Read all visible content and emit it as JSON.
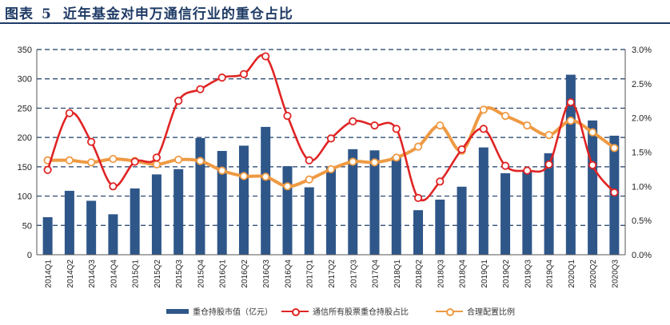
{
  "header": {
    "figure_label": "图表",
    "figure_number": "5",
    "title": "近年基金对申万通信行业的重仓占比"
  },
  "chart_data": {
    "type": "bar+line",
    "categories": [
      "2014Q1",
      "2014Q2",
      "2014Q3",
      "2014Q4",
      "2015Q1",
      "2015Q2",
      "2015Q3",
      "2015Q4",
      "2016Q1",
      "2016Q2",
      "2016Q3",
      "2016Q4",
      "2017Q1",
      "2017Q2",
      "2017Q3",
      "2017Q4",
      "2018Q1",
      "2018Q2",
      "2018Q3",
      "2018Q4",
      "2019Q1",
      "2019Q2",
      "2019Q3",
      "2019Q4",
      "2020Q1",
      "2020Q2",
      "2020Q3"
    ],
    "y_left": {
      "range": [
        0,
        350
      ],
      "ticks": [
        "0",
        "50",
        "100",
        "150",
        "200",
        "250",
        "300",
        "350"
      ]
    },
    "y_right": {
      "range": [
        0,
        3.0
      ],
      "ticks": [
        "0.0%",
        "0.5%",
        "1.0%",
        "1.5%",
        "2.0%",
        "2.5%",
        "3.0%"
      ]
    },
    "grid": "dashed-horizontal",
    "legend_position": "bottom",
    "series": [
      {
        "name": "重仓持股市值（亿元）",
        "kind": "bar",
        "axis": "left",
        "color": "#2e5689",
        "values": [
          64,
          109,
          92,
          69,
          113,
          137,
          146,
          199,
          177,
          186,
          218,
          151,
          115,
          150,
          180,
          178,
          167,
          76,
          94,
          116,
          183,
          139,
          143,
          173,
          307,
          229,
          203
        ]
      },
      {
        "name": "通信所有股票重仓持股占比",
        "kind": "line",
        "axis": "right",
        "color": "#e02424",
        "values": [
          1.24,
          2.07,
          1.65,
          1.0,
          1.36,
          1.42,
          2.25,
          2.42,
          2.59,
          2.64,
          2.9,
          2.03,
          1.38,
          1.7,
          1.95,
          1.89,
          1.84,
          0.83,
          1.07,
          1.54,
          1.84,
          1.3,
          1.23,
          1.32,
          2.23,
          1.31,
          0.91
        ]
      },
      {
        "name": "合理配置比例",
        "kind": "line",
        "axis": "right",
        "color": "#ee9a43",
        "values": [
          1.38,
          1.38,
          1.35,
          1.4,
          1.37,
          1.32,
          1.39,
          1.37,
          1.23,
          1.15,
          1.14,
          1.0,
          1.1,
          1.25,
          1.36,
          1.35,
          1.42,
          1.58,
          1.89,
          1.52,
          2.12,
          2.03,
          1.89,
          1.75,
          1.96,
          1.79,
          1.56
        ]
      }
    ]
  }
}
